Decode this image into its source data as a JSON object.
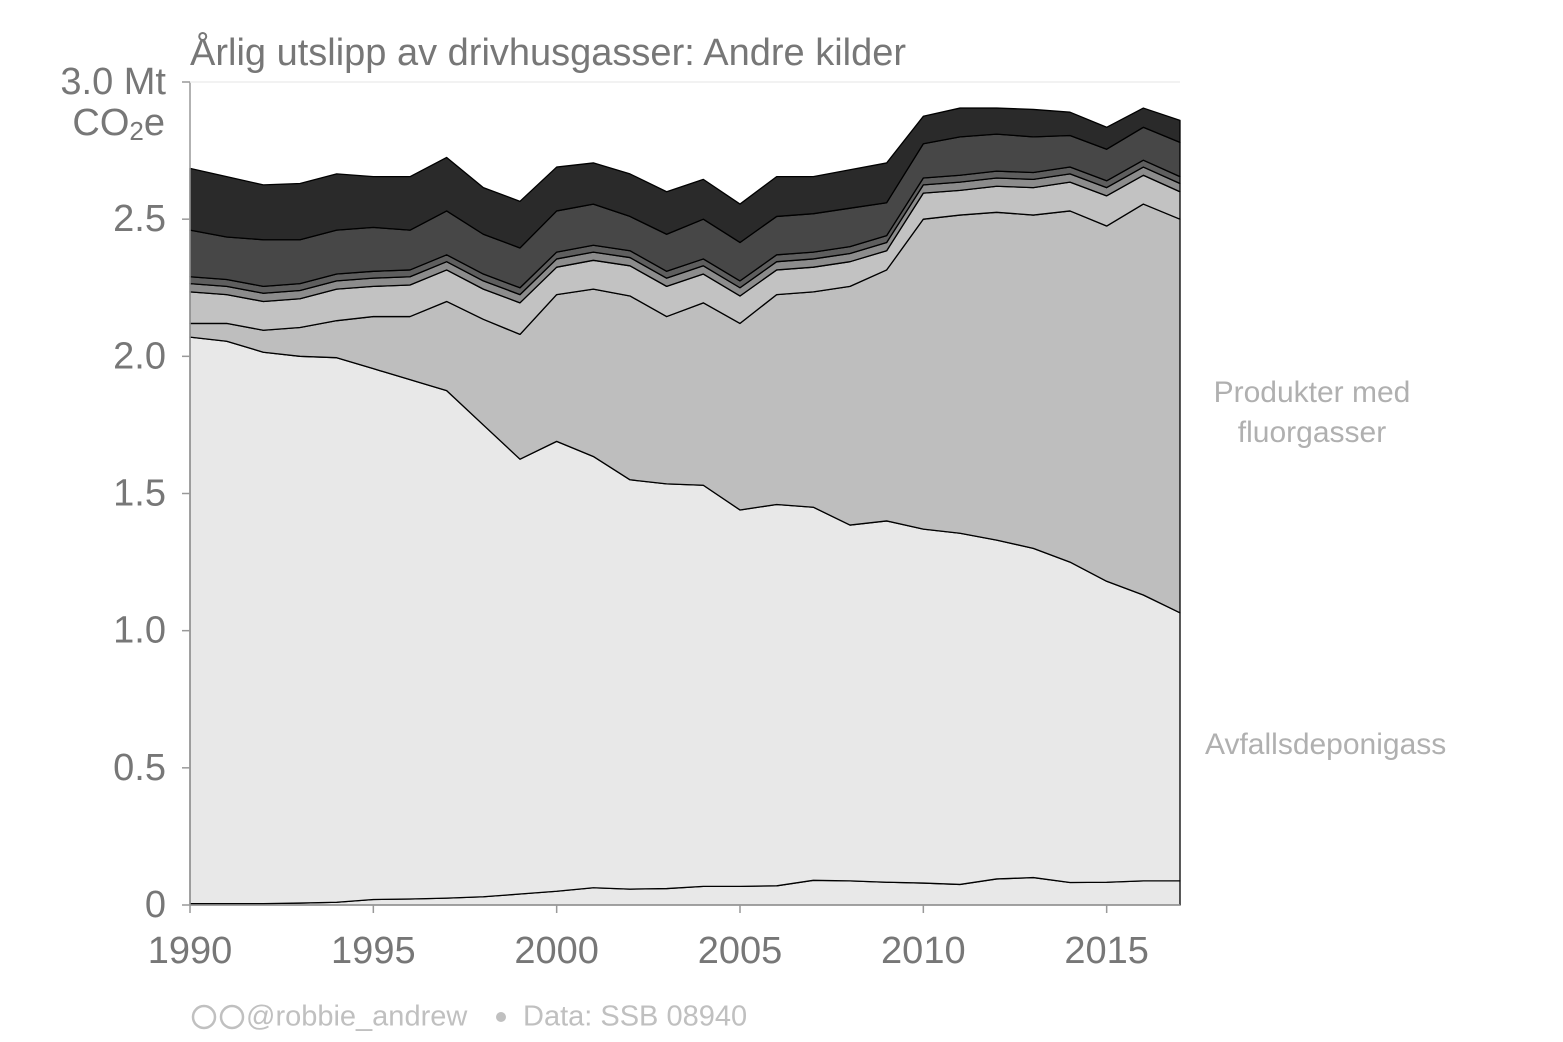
{
  "chart_data": {
    "type": "stacked-area",
    "title": "Årlig utslipp av drivhusgasser: Andre kilder",
    "y_label": "CO₂e",
    "credit": "@robbie_andrew",
    "source": "Data: SSB 08940",
    "x": [
      1990,
      1991,
      1992,
      1993,
      1994,
      1995,
      1996,
      1997,
      1998,
      1999,
      2000,
      2001,
      2002,
      2003,
      2004,
      2005,
      2006,
      2007,
      2008,
      2009,
      2010,
      2011,
      2012,
      2013,
      2014,
      2015,
      2016,
      2017
    ],
    "xlim": [
      1990,
      2017
    ],
    "xticks": [
      1990,
      1995,
      2000,
      2005,
      2010,
      2015
    ],
    "ylim": [
      0,
      3
    ],
    "yticks": [
      0,
      0.5,
      {
        "value": 1,
        "label": "1.0"
      },
      1.5,
      {
        "value": 2,
        "label": "2.0"
      },
      2.5,
      {
        "value": 3,
        "label": "3.0 Mt"
      }
    ],
    "series": [
      {
        "name": null,
        "color": "#e8e8e8",
        "values": [
          0.005,
          0.005,
          0.005,
          0.007,
          0.01,
          0.02,
          0.022,
          0.025,
          0.03,
          0.04,
          0.05,
          0.063,
          0.058,
          0.06,
          0.068,
          0.068,
          0.07,
          0.09,
          0.088,
          0.083,
          0.08,
          0.075,
          0.095,
          0.1,
          0.082,
          0.083,
          0.088,
          0.088
        ]
      },
      {
        "name": "Avfallsdeponigass",
        "color": "#e8e8e8",
        "values": [
          2.065,
          2.05,
          2.01,
          1.993,
          1.985,
          1.935,
          1.893,
          1.85,
          1.72,
          1.585,
          1.64,
          1.572,
          1.492,
          1.475,
          1.462,
          1.372,
          1.39,
          1.36,
          1.297,
          1.317,
          1.29,
          1.28,
          1.235,
          1.2,
          1.168,
          1.097,
          1.042,
          0.977
        ]
      },
      {
        "name": "Produkter med fluorgasser",
        "color": "#bebebe",
        "values": [
          0.05,
          0.065,
          0.08,
          0.105,
          0.135,
          0.19,
          0.23,
          0.325,
          0.385,
          0.455,
          0.535,
          0.61,
          0.67,
          0.61,
          0.665,
          0.68,
          0.765,
          0.785,
          0.87,
          0.915,
          1.13,
          1.16,
          1.195,
          1.215,
          1.28,
          1.295,
          1.425,
          1.435
        ]
      },
      {
        "name": null,
        "color": "#c2c2c2",
        "values": [
          0.115,
          0.105,
          0.105,
          0.105,
          0.115,
          0.11,
          0.115,
          0.115,
          0.11,
          0.115,
          0.1,
          0.105,
          0.11,
          0.11,
          0.105,
          0.1,
          0.09,
          0.09,
          0.09,
          0.07,
          0.095,
          0.09,
          0.095,
          0.1,
          0.105,
          0.11,
          0.105,
          0.1
        ]
      },
      {
        "name": null,
        "color": "#8c8c8c",
        "values": [
          0.03,
          0.03,
          0.03,
          0.03,
          0.03,
          0.03,
          0.03,
          0.03,
          0.03,
          0.03,
          0.03,
          0.03,
          0.03,
          0.03,
          0.03,
          0.03,
          0.03,
          0.03,
          0.03,
          0.03,
          0.03,
          0.03,
          0.03,
          0.03,
          0.03,
          0.03,
          0.03,
          0.03
        ]
      },
      {
        "name": null,
        "color": "#5e5e5e",
        "values": [
          0.025,
          0.025,
          0.025,
          0.025,
          0.025,
          0.025,
          0.025,
          0.025,
          0.025,
          0.025,
          0.025,
          0.025,
          0.025,
          0.025,
          0.025,
          0.025,
          0.025,
          0.025,
          0.025,
          0.025,
          0.025,
          0.025,
          0.025,
          0.025,
          0.025,
          0.025,
          0.025,
          0.025
        ]
      },
      {
        "name": null,
        "color": "#474747",
        "values": [
          0.17,
          0.155,
          0.17,
          0.16,
          0.16,
          0.16,
          0.145,
          0.16,
          0.145,
          0.145,
          0.15,
          0.15,
          0.125,
          0.135,
          0.145,
          0.14,
          0.14,
          0.14,
          0.14,
          0.12,
          0.125,
          0.14,
          0.135,
          0.13,
          0.115,
          0.115,
          0.12,
          0.125
        ]
      },
      {
        "name": null,
        "color": "#2a2a2a",
        "values": [
          0.225,
          0.22,
          0.2,
          0.205,
          0.205,
          0.185,
          0.195,
          0.195,
          0.17,
          0.17,
          0.16,
          0.15,
          0.155,
          0.155,
          0.145,
          0.14,
          0.145,
          0.135,
          0.14,
          0.145,
          0.1,
          0.105,
          0.095,
          0.1,
          0.085,
          0.08,
          0.07,
          0.08
        ]
      }
    ]
  }
}
